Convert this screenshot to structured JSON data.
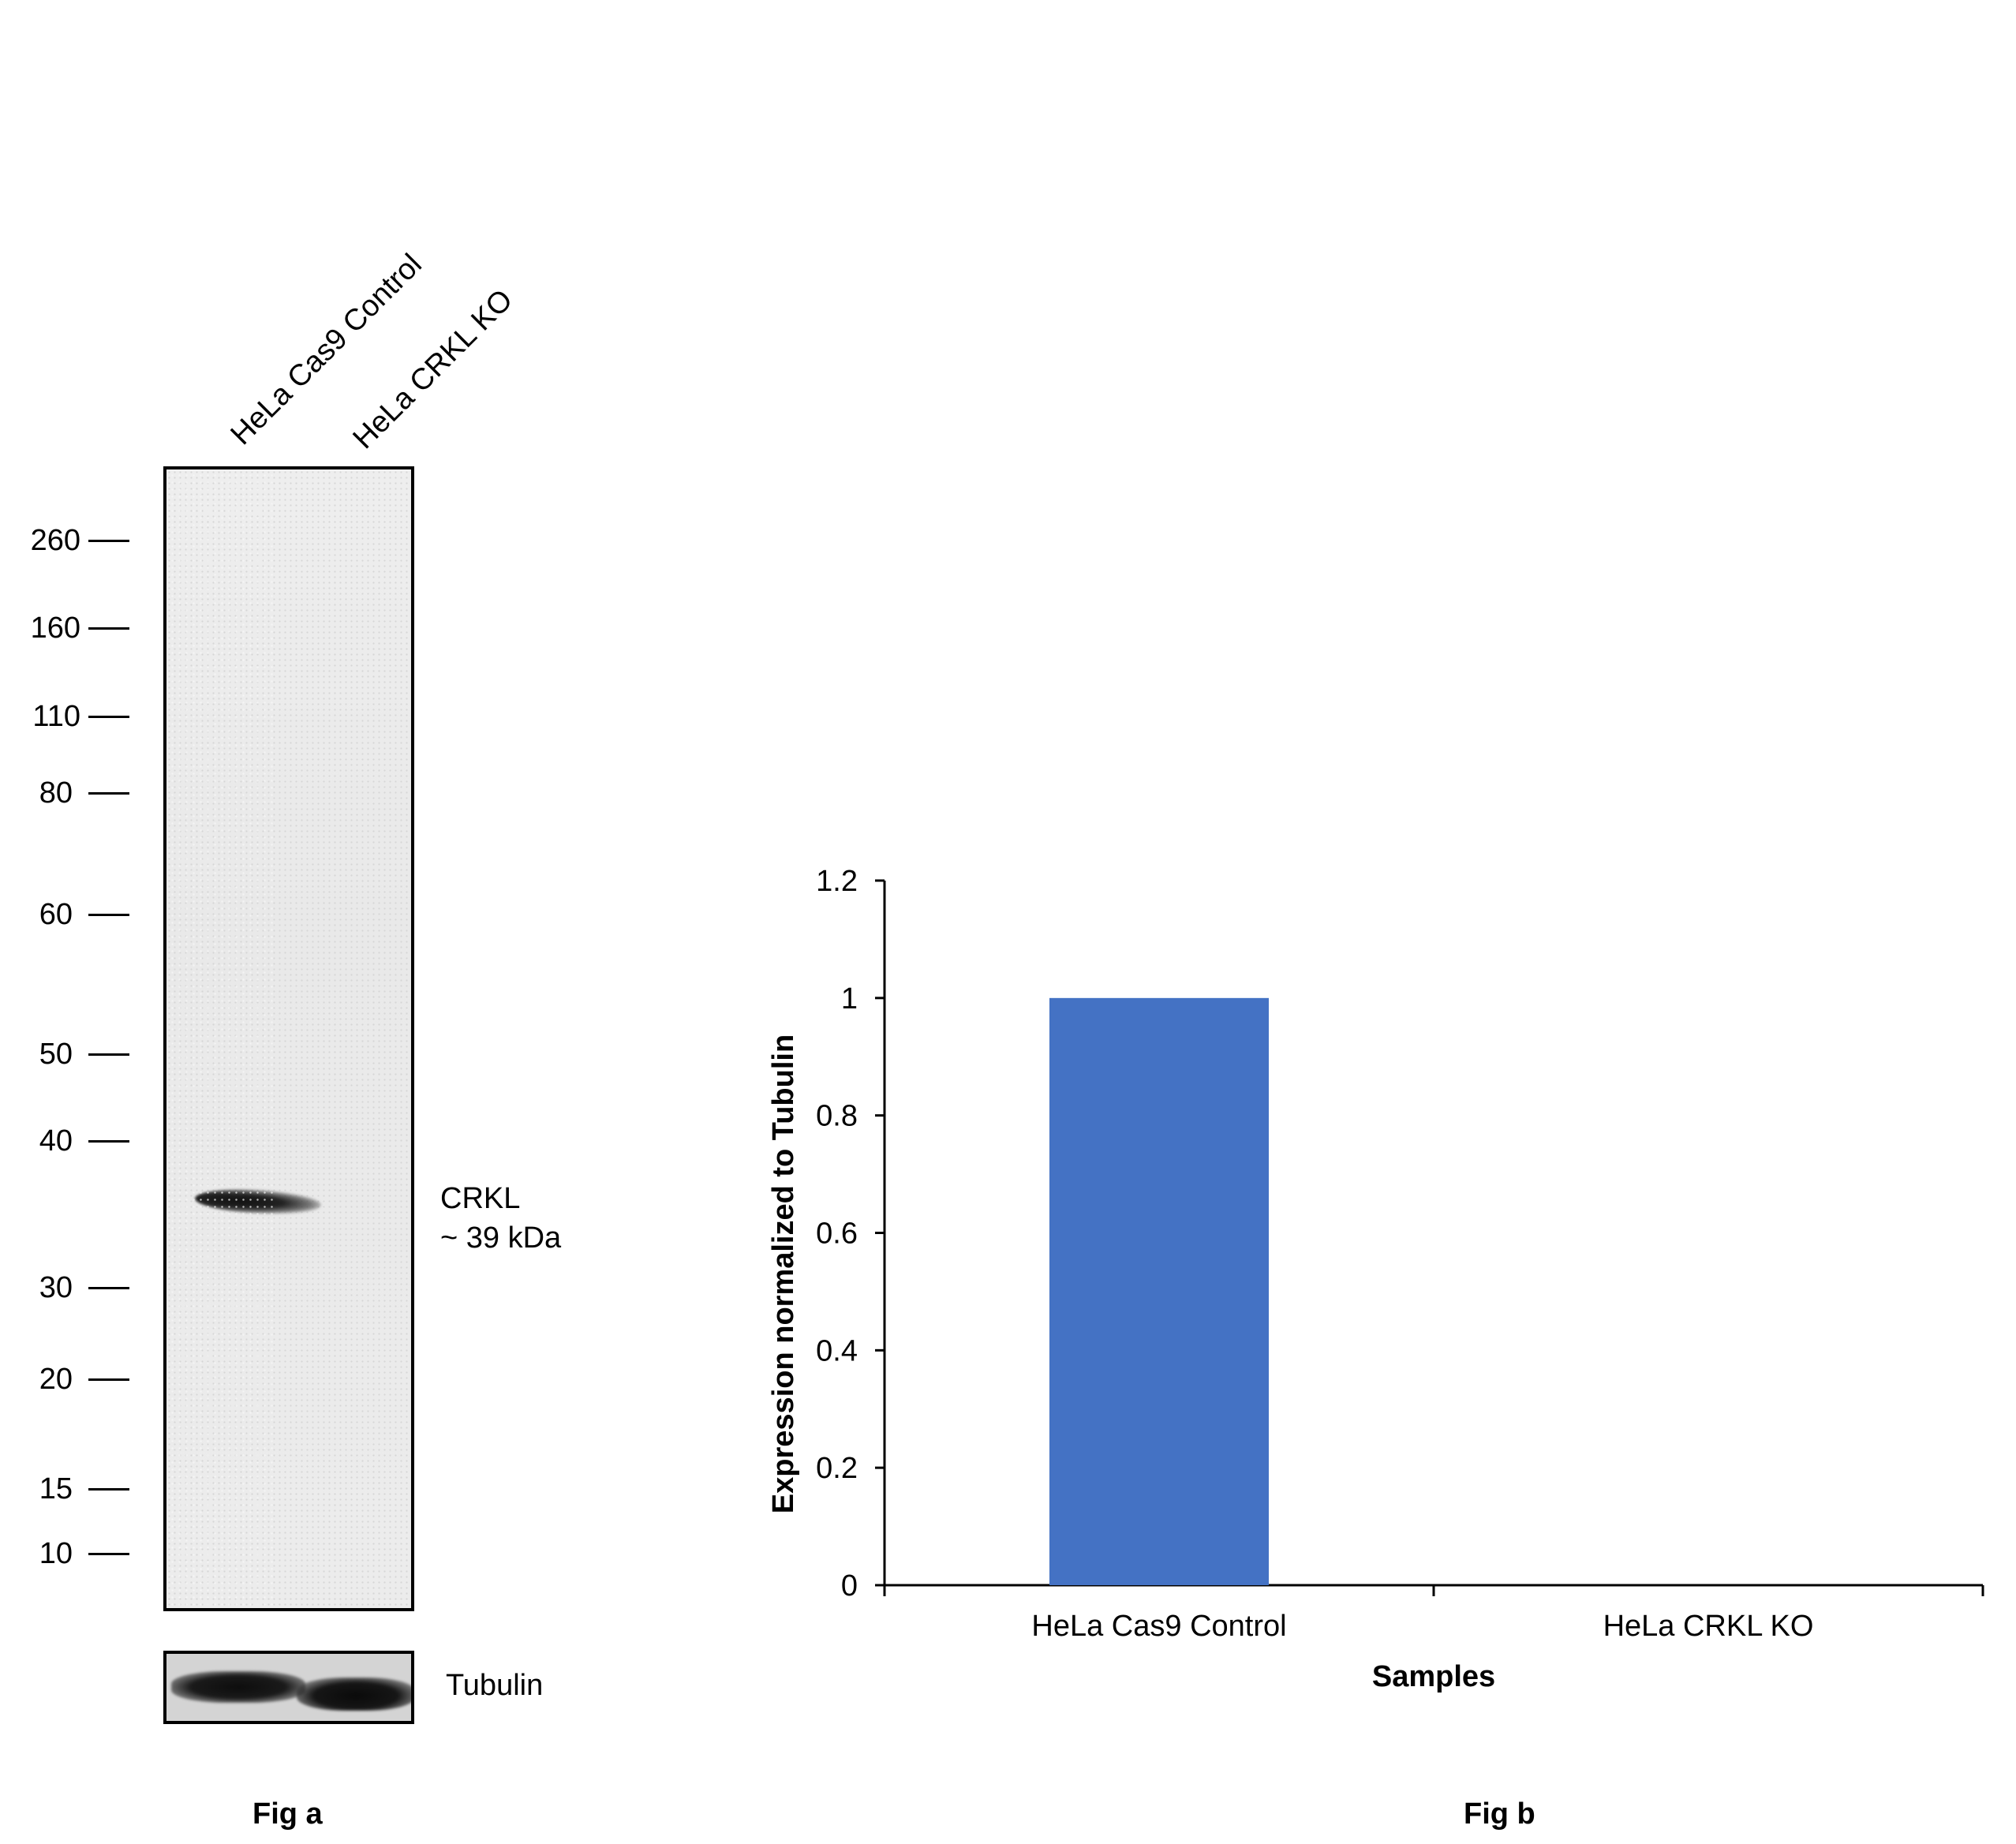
{
  "fig_a": {
    "label": "Fig a",
    "lanes": [
      "HeLa Cas9 Control",
      "HeLa CRKL KO"
    ],
    "markers": [
      "260",
      "160",
      "110",
      "80",
      "60",
      "50",
      "40",
      "30",
      "20",
      "15",
      "10"
    ],
    "band_label_line1": "CRKL",
    "band_label_line2": "~ 39 kDa",
    "loading_control_label": "Tubulin"
  },
  "fig_b": {
    "label": "Fig b"
  },
  "colors": {
    "bar": "#4472C4",
    "axis": "#000000"
  },
  "chart_data": {
    "type": "bar",
    "categories": [
      "HeLa Cas9 Control",
      "HeLa CRKL KO"
    ],
    "values": [
      1.0,
      0.0
    ],
    "title": "",
    "xlabel": "Samples",
    "ylabel": "Expression normalized to Tubulin",
    "ylim": [
      0,
      1.2
    ],
    "yticks": [
      "0",
      "0.2",
      "0.4",
      "0.6",
      "0.8",
      "1",
      "1.2"
    ],
    "grid": false,
    "legend": "none"
  }
}
